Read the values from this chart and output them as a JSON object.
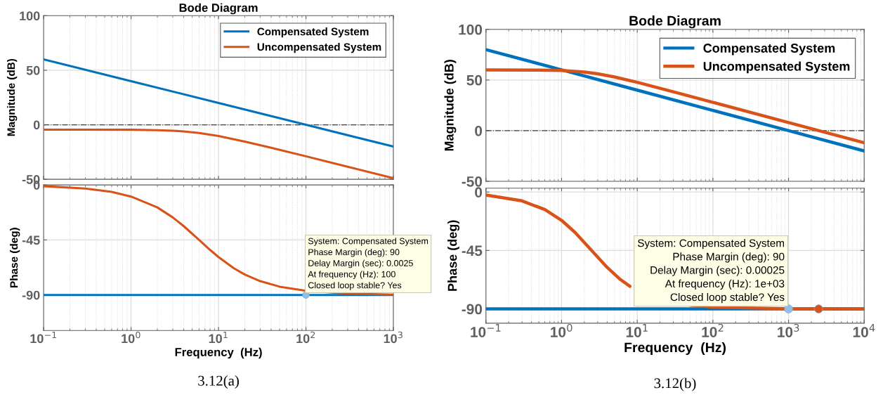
{
  "chart_data": [
    {
      "type": "line",
      "title": "Bode Diagram",
      "ylabel": "Magnitude (dB)",
      "log": "x",
      "xlim": [
        0.1,
        1000
      ],
      "xticks": [
        {
          "value": 0.1,
          "label": null
        },
        {
          "value": 1,
          "label": null
        },
        {
          "value": 10,
          "label": null
        },
        {
          "value": 100,
          "label": null
        },
        {
          "value": 1000,
          "label": null
        }
      ],
      "ylim": [
        -50,
        100
      ],
      "yticks": [
        -50,
        0,
        50,
        100
      ],
      "tick_labels": "y",
      "grid": true,
      "legend": "top right",
      "ref_lines": [
        {
          "axis": "y",
          "value": 0,
          "color": "#404040",
          "line_style": "dashdot"
        }
      ],
      "series": [
        {
          "name": "Compensated System",
          "color": "#0072bd",
          "x": [
            0.1,
            1,
            10,
            100,
            1000
          ],
          "values": [
            60,
            40,
            20,
            0,
            -20
          ]
        },
        {
          "name": "Uncompensated System",
          "color": "#d95319",
          "x": [
            0.1,
            0.3,
            1,
            2,
            3,
            4,
            6,
            10,
            20,
            40,
            100,
            300,
            1000
          ],
          "values": [
            -4.5,
            -4.5,
            -4.6,
            -5.0,
            -5.5,
            -6.1,
            -7.5,
            -10.3,
            -15.4,
            -21.1,
            -28.9,
            -38.5,
            -48.9
          ]
        }
      ]
    },
    {
      "type": "line",
      "xlabel": "Frequency  (Hz)",
      "ylabel": "Phase (deg)",
      "log": "x",
      "xlim": [
        0.1,
        1000
      ],
      "xticks": [
        {
          "value": 0.1,
          "label": "10$^{−1}$"
        },
        {
          "value": 1,
          "label": "10$^{0}$"
        },
        {
          "value": 10,
          "label": "10$^{1}$"
        },
        {
          "value": 100,
          "label": "10$^{2}$"
        },
        {
          "value": 1000,
          "label": "10$^{3}$"
        }
      ],
      "ylim": [
        -119,
        0
      ],
      "yticks": [
        -90,
        -45,
        0
      ],
      "grid": true,
      "series": [
        {
          "color": "#0072bd",
          "x": [
            0.1,
            1,
            10,
            100,
            1000
          ],
          "values": [
            -90,
            -90,
            -90,
            -90,
            -90
          ]
        },
        {
          "color": "#d95319",
          "x": [
            0.1,
            0.3,
            0.6,
            1,
            2,
            3,
            4,
            6,
            8,
            10,
            15,
            20,
            30,
            50,
            100,
            300,
            1000
          ],
          "values": [
            -1,
            -2.9,
            -5.7,
            -9.5,
            -18.4,
            -26.6,
            -33.7,
            -45,
            -53.1,
            -59.0,
            -68.2,
            -73.3,
            -78.7,
            -83.2,
            -86.6,
            -88.9,
            -89.7
          ]
        },
        {
          "type": "scatter",
          "marker": "circle",
          "color": "#8fc1e8",
          "x": [
            100
          ],
          "values": [
            -90
          ]
        }
      ],
      "annotations": [
        {
          "text": "System: Compensated System\nPhase Margin (deg): 90\nDelay Margin (sec): 0.0025\nAt frequency (Hz): 100\nClosed loop stable? Yes",
          "x": 100,
          "y": -90
        },
        "3.12(a)"
      ]
    },
    {
      "type": "line",
      "title": "Bode Diagram",
      "ylabel": "Magnitude (dB)",
      "log": "x",
      "xlim": [
        0.1,
        10000
      ],
      "xticks": [
        {
          "value": 0.1,
          "label": null
        },
        {
          "value": 1,
          "label": null
        },
        {
          "value": 10,
          "label": null
        },
        {
          "value": 100,
          "label": null
        },
        {
          "value": 1000,
          "label": null
        },
        {
          "value": 10000,
          "label": null
        }
      ],
      "ylim": [
        -50,
        100
      ],
      "yticks": [
        -50,
        0,
        50,
        100
      ],
      "tick_labels": "y",
      "grid": true,
      "legend": "top right",
      "ref_lines": [
        {
          "axis": "y",
          "value": 0,
          "color": "#404040",
          "line_style": "dashdot"
        }
      ],
      "series": [
        {
          "name": "Compensated System",
          "color": "#0072bd",
          "x": [
            0.1,
            1,
            10,
            100,
            1000,
            10000
          ],
          "values": [
            80,
            60,
            40,
            20,
            0,
            -20
          ]
        },
        {
          "name": "Uncompensated System",
          "color": "#d95319",
          "x": [
            0.1,
            0.5,
            1,
            2,
            3,
            5,
            10,
            30,
            100,
            1000,
            10000
          ],
          "values": [
            60,
            59.8,
            59.4,
            57.9,
            56.1,
            53.0,
            47.7,
            38.4,
            28.0,
            8.0,
            -12.0
          ]
        }
      ]
    },
    {
      "type": "line",
      "xlabel": "Frequency  (Hz)",
      "ylabel": "Phase (deg)",
      "log": "x",
      "xlim": [
        0.1,
        10000
      ],
      "xticks": [
        {
          "value": 0.1,
          "label": "10$^{−1}$"
        },
        {
          "value": 1,
          "label": "10$^{0}$"
        },
        {
          "value": 10,
          "label": "10$^{1}$"
        },
        {
          "value": 100,
          "label": "10$^{2}$"
        },
        {
          "value": 1000,
          "label": "10$^{3}$"
        },
        {
          "value": 10000,
          "label": "10$^{4}$"
        }
      ],
      "ylim": [
        -101,
        3
      ],
      "yticks": [
        -90,
        -45,
        0
      ],
      "grid": true,
      "series": [
        {
          "color": "#0072bd",
          "x": [
            0.1,
            1,
            10,
            100,
            1000,
            10000
          ],
          "values": [
            -90,
            -90,
            -90,
            -90,
            -90,
            -90
          ]
        },
        {
          "color": "#d95319",
          "x": [
            0.1,
            0.3,
            0.6,
            1,
            1.5,
            2.5,
            4,
            6,
            8,
            20,
            50,
            100,
            1000,
            2500,
            10000
          ],
          "values": [
            -2.3,
            -6.8,
            -13.5,
            -21.8,
            -31.0,
            -45,
            -58.0,
            -67.4,
            -72.6,
            null,
            -87.1,
            -88.6,
            -89.9,
            -89.9,
            -90.0
          ]
        },
        {
          "type": "scatter",
          "marker": "circle",
          "color": "#8fc1e8",
          "x": [
            1000
          ],
          "values": [
            -90
          ]
        },
        {
          "type": "scatter",
          "marker": "circle",
          "color": "#d95319",
          "x": [
            2500
          ],
          "values": [
            -90
          ]
        }
      ],
      "annotations": [
        {
          "text": "System: Compensated System\nPhase Margin (deg): 90\nDelay Margin (sec): 0.00025\nAt frequency (Hz): 1e+03\nClosed loop stable? Yes",
          "x": 1000,
          "y": -90
        },
        "3.12(b)"
      ]
    }
  ]
}
